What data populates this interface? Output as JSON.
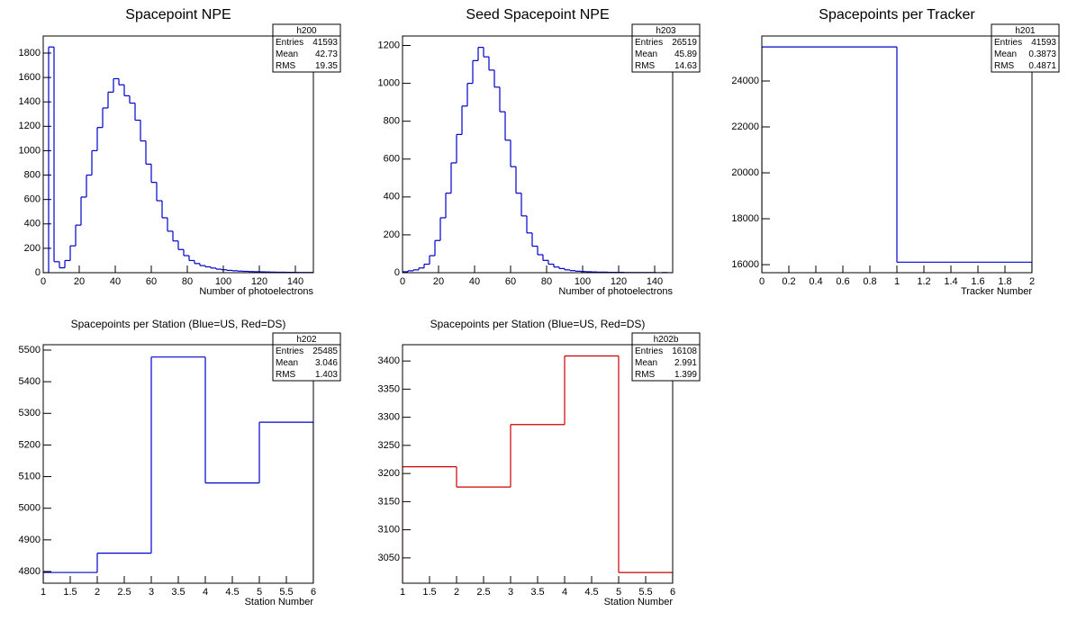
{
  "chart_data": [
    {
      "type": "histogram",
      "title": "Spacepoint NPE",
      "xlabel": "Number of photoelectrons",
      "color": "#0000cc",
      "bins": [
        0,
        3,
        6,
        9,
        12,
        15,
        18,
        21,
        24,
        27,
        30,
        33,
        36,
        39,
        42,
        45,
        48,
        51,
        54,
        57,
        60,
        63,
        66,
        69,
        72,
        75,
        78,
        81,
        84,
        87,
        90,
        93,
        96,
        99,
        102,
        105,
        108,
        111,
        114,
        117,
        120,
        123,
        126,
        129,
        132,
        135,
        138,
        141,
        144,
        147,
        150
      ],
      "values": [
        0,
        1850,
        90,
        40,
        100,
        220,
        390,
        620,
        800,
        1000,
        1190,
        1350,
        1480,
        1590,
        1540,
        1450,
        1390,
        1250,
        1080,
        890,
        740,
        590,
        450,
        340,
        260,
        190,
        140,
        100,
        75,
        58,
        48,
        38,
        29,
        24,
        19,
        16,
        13,
        11,
        9,
        8,
        7,
        6,
        5,
        4,
        4,
        3,
        3,
        2,
        2,
        2
      ],
      "xlim": [
        0,
        150
      ],
      "ylim": [
        0,
        1940
      ],
      "xticks": [
        0,
        20,
        40,
        60,
        80,
        100,
        120,
        140
      ],
      "yticks": [
        0,
        200,
        400,
        600,
        800,
        1000,
        1200,
        1400,
        1600,
        1800
      ],
      "stats": {
        "name": "h200",
        "rows": [
          {
            "label": "Entries",
            "value": 41593
          },
          {
            "label": "Mean",
            "value": 42.73
          },
          {
            "label": "RMS",
            "value": 19.35
          }
        ]
      }
    },
    {
      "type": "histogram",
      "title": "Seed Spacepoint NPE",
      "xlabel": "Number of photoelectrons",
      "color": "#0000cc",
      "bins": [
        0,
        3,
        6,
        9,
        12,
        15,
        18,
        21,
        24,
        27,
        30,
        33,
        36,
        39,
        42,
        45,
        48,
        51,
        54,
        57,
        60,
        63,
        66,
        69,
        72,
        75,
        78,
        81,
        84,
        87,
        90,
        93,
        96,
        99,
        102,
        105,
        108,
        111,
        114,
        117,
        120,
        123,
        126,
        129,
        132,
        135,
        138,
        141,
        144,
        147,
        150
      ],
      "values": [
        5,
        10,
        15,
        25,
        45,
        90,
        170,
        290,
        420,
        580,
        730,
        880,
        1000,
        1120,
        1190,
        1140,
        1070,
        980,
        850,
        700,
        560,
        420,
        300,
        210,
        140,
        95,
        65,
        45,
        30,
        22,
        15,
        11,
        8,
        6,
        5,
        4,
        3,
        3,
        2,
        2,
        2,
        1,
        1,
        1,
        1,
        1,
        1,
        0,
        1,
        0
      ],
      "xlim": [
        0,
        150
      ],
      "ylim": [
        0,
        1250
      ],
      "xticks": [
        0,
        20,
        40,
        60,
        80,
        100,
        120,
        140
      ],
      "yticks": [
        0,
        200,
        400,
        600,
        800,
        1000,
        1200
      ],
      "stats": {
        "name": "h203",
        "rows": [
          {
            "label": "Entries",
            "value": 26519
          },
          {
            "label": "Mean",
            "value": 45.89
          },
          {
            "label": "RMS",
            "value": 14.63
          }
        ]
      }
    },
    {
      "type": "histogram",
      "title": "Spacepoints per Tracker",
      "xlabel": "Tracker Number",
      "color": "#0000cc",
      "bins": [
        0,
        1,
        2
      ],
      "values": [
        25485,
        16108
      ],
      "xlim": [
        0,
        2
      ],
      "ylim": [
        15650,
        25960
      ],
      "xticks": [
        0,
        0.2,
        0.4,
        0.6,
        0.8,
        1,
        1.2,
        1.4,
        1.6,
        1.8,
        2
      ],
      "yticks": [
        16000,
        18000,
        20000,
        22000,
        24000
      ],
      "stats": {
        "name": "h201",
        "rows": [
          {
            "label": "Entries",
            "value": 41593
          },
          {
            "label": "Mean",
            "value": 0.3873
          },
          {
            "label": "RMS",
            "value": 0.4871
          }
        ]
      }
    },
    {
      "type": "histogram",
      "title": "Spacepoints per Station (Blue=US, Red=DS)",
      "xlabel": "Station Number",
      "color": "#0000cc",
      "bins": [
        1,
        2,
        3,
        4,
        5,
        6
      ],
      "values": [
        4797,
        4858,
        5478,
        5080,
        5272
      ],
      "xlim": [
        1,
        6
      ],
      "ylim": [
        4763,
        5517
      ],
      "xticks": [
        1,
        1.5,
        2,
        2.5,
        3,
        3.5,
        4,
        4.5,
        5,
        5.5,
        6
      ],
      "yticks": [
        4800,
        4900,
        5000,
        5100,
        5200,
        5300,
        5400,
        5500
      ],
      "stats": {
        "name": "h202",
        "rows": [
          {
            "label": "Entries",
            "value": 25485
          },
          {
            "label": "Mean",
            "value": 3.046
          },
          {
            "label": "RMS",
            "value": 1.403
          }
        ]
      }
    },
    {
      "type": "histogram",
      "title": "Spacepoints per Station (Blue=US, Red=DS)",
      "xlabel": "Station Number",
      "color": "#cc0000",
      "bins": [
        1,
        2,
        3,
        4,
        5,
        6
      ],
      "values": [
        3212,
        3176,
        3287,
        3409,
        3024
      ],
      "xlim": [
        1,
        6
      ],
      "ylim": [
        3005,
        3429
      ],
      "xticks": [
        1,
        1.5,
        2,
        2.5,
        3,
        3.5,
        4,
        4.5,
        5,
        5.5,
        6
      ],
      "yticks": [
        3050,
        3100,
        3150,
        3200,
        3250,
        3300,
        3350,
        3400
      ],
      "stats": {
        "name": "h202b",
        "rows": [
          {
            "label": "Entries",
            "value": 16108
          },
          {
            "label": "Mean",
            "value": 2.991
          },
          {
            "label": "RMS",
            "value": 1.399
          }
        ]
      }
    }
  ]
}
